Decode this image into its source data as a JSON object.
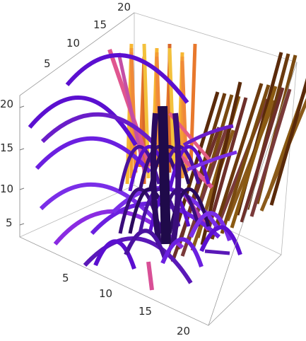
{
  "chart_data": {
    "type": "3d-stream-ribbons",
    "title": "",
    "axes": {
      "x": {
        "label": "",
        "range": [
          0,
          20
        ],
        "ticks": [
          "5",
          "10",
          "15",
          "20"
        ]
      },
      "y": {
        "label": "",
        "range": [
          0,
          20
        ],
        "ticks": [
          "5",
          "10",
          "15",
          "20"
        ]
      },
      "z": {
        "label": "",
        "range": [
          0,
          20
        ],
        "ticks": [
          "5",
          "10",
          "15",
          "20"
        ]
      }
    },
    "box": true,
    "grid": false,
    "legend": "none",
    "color_scheme": [
      "#2a0a5e",
      "#5b0fd0",
      "#8a2be2",
      "#b23aa8",
      "#e0568f",
      "#f08a3a",
      "#f7b733",
      "#6b3a0e"
    ],
    "description_note": ""
  }
}
